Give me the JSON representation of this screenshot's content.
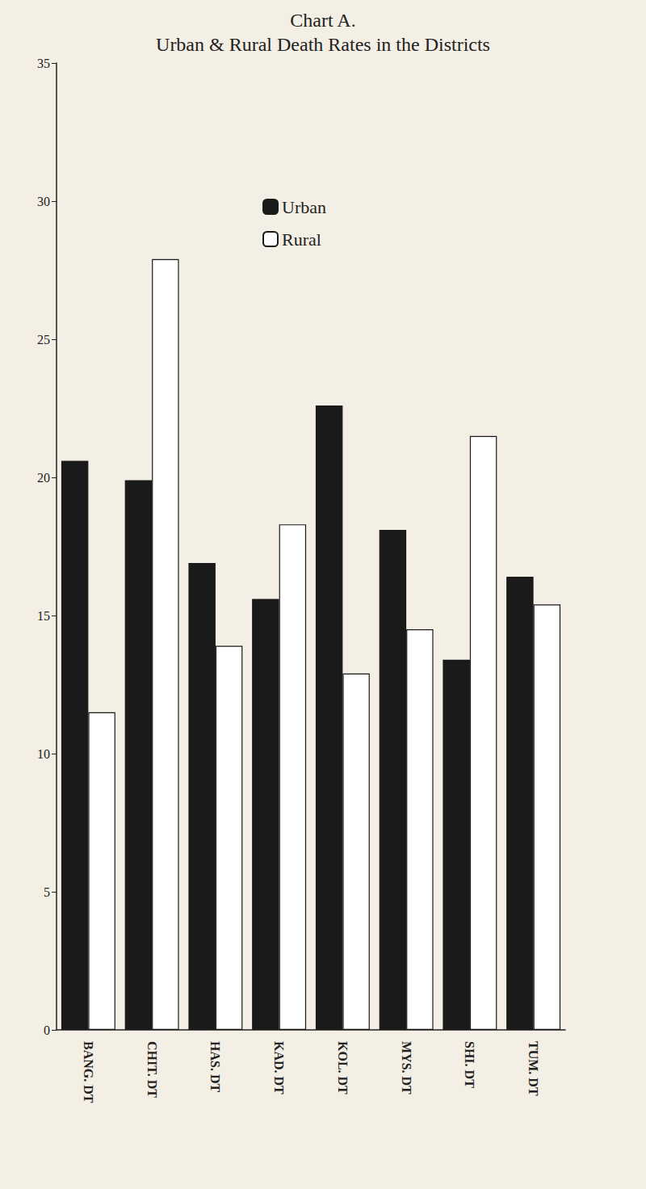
{
  "chart_data": {
    "type": "bar",
    "title": "Chart A.",
    "subtitle": "Urban & Rural Death Rates in the Districts",
    "categories": [
      "BANG. DT",
      "CHIT. DT",
      "HAS. DT",
      "KAD. DT",
      "KOL. DT",
      "MYS. DT",
      "SHI. DT",
      "TUM. DT"
    ],
    "series": [
      {
        "name": "Urban",
        "color": "#1a1a1a",
        "values": [
          20.6,
          19.9,
          16.9,
          15.6,
          22.6,
          18.1,
          13.4,
          16.4
        ]
      },
      {
        "name": "Rural",
        "color": "#ffffff",
        "values": [
          11.5,
          27.9,
          13.9,
          18.3,
          12.9,
          14.5,
          21.5,
          15.4
        ]
      }
    ],
    "ylim": [
      0,
      35
    ],
    "yticks": [
      0,
      5,
      10,
      15,
      20,
      25,
      30,
      35
    ],
    "grid": false,
    "legend": "top"
  }
}
